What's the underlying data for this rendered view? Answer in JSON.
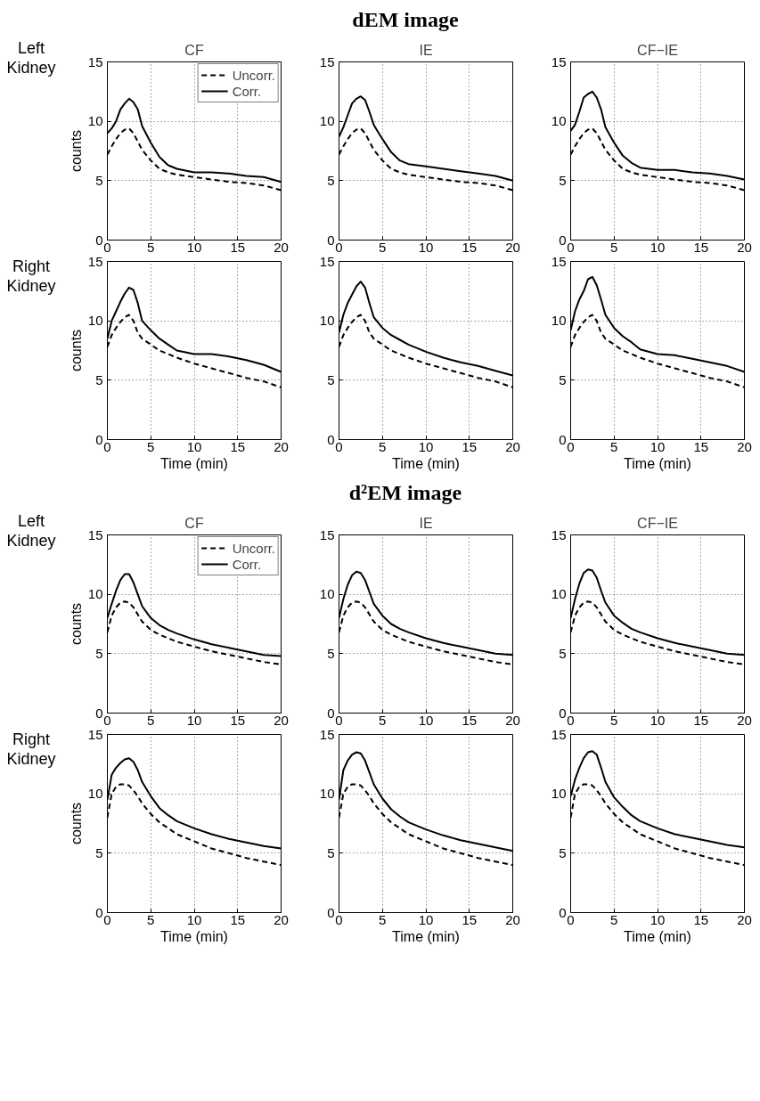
{
  "chart_data": [
    {
      "type": "line",
      "subtitle": "CF",
      "ylabel": "counts",
      "annotations": [
        "Left Kidney"
      ],
      "legend": "top right",
      "grid": true,
      "xlim": [
        0,
        20
      ],
      "ylim": [
        0,
        15
      ],
      "xticks": [
        0,
        5,
        10,
        15,
        20
      ],
      "yticks": [
        0,
        5,
        10,
        15
      ],
      "x": [
        0,
        0.5,
        1,
        1.5,
        2,
        2.5,
        3,
        3.5,
        4,
        5,
        6,
        7,
        8,
        10,
        12,
        14,
        16,
        18,
        20
      ],
      "series": [
        {
          "name": "Uncorr.",
          "color": "#000000",
          "line_style": "dashed",
          "values": [
            7.2,
            7.9,
            8.5,
            9.0,
            9.3,
            9.4,
            9.0,
            8.3,
            7.6,
            6.7,
            6.0,
            5.7,
            5.5,
            5.3,
            5.1,
            4.9,
            4.8,
            4.6,
            4.2
          ]
        },
        {
          "name": "Corr.",
          "color": "#000000",
          "line_style": "solid",
          "values": [
            9.0,
            9.4,
            10.0,
            11.0,
            11.5,
            11.9,
            11.6,
            11.0,
            9.6,
            8.2,
            7.0,
            6.3,
            6.0,
            5.7,
            5.7,
            5.6,
            5.4,
            5.3,
            4.9
          ]
        }
      ]
    },
    {
      "type": "line",
      "title": "dEM image",
      "subtitle": "IE",
      "grid": true,
      "xlim": [
        0,
        20
      ],
      "ylim": [
        0,
        15
      ],
      "xticks": [
        0,
        5,
        10,
        15,
        20
      ],
      "yticks": [
        0,
        5,
        10,
        15
      ],
      "x": [
        0,
        0.5,
        1,
        1.5,
        2,
        2.5,
        3,
        3.5,
        4,
        5,
        6,
        7,
        8,
        10,
        12,
        14,
        16,
        18,
        20
      ],
      "series": [
        {
          "color": "#000000",
          "line_style": "dashed",
          "values": [
            7.2,
            7.9,
            8.5,
            9.0,
            9.3,
            9.4,
            9.0,
            8.3,
            7.6,
            6.7,
            6.0,
            5.7,
            5.5,
            5.3,
            5.1,
            4.9,
            4.8,
            4.6,
            4.2
          ]
        },
        {
          "color": "#000000",
          "line_style": "solid",
          "values": [
            8.7,
            9.5,
            10.5,
            11.5,
            11.9,
            12.1,
            11.8,
            10.8,
            9.7,
            8.5,
            7.4,
            6.7,
            6.4,
            6.2,
            6.0,
            5.8,
            5.6,
            5.4,
            5.0
          ]
        }
      ]
    },
    {
      "type": "line",
      "subtitle": "CF−IE",
      "grid": true,
      "xlim": [
        0,
        20
      ],
      "ylim": [
        0,
        15
      ],
      "xticks": [
        0,
        5,
        10,
        15,
        20
      ],
      "yticks": [
        0,
        5,
        10,
        15
      ],
      "x": [
        0,
        0.5,
        1,
        1.5,
        2,
        2.5,
        3,
        3.5,
        4,
        5,
        6,
        7,
        8,
        10,
        12,
        14,
        16,
        18,
        20
      ],
      "series": [
        {
          "color": "#000000",
          "line_style": "dashed",
          "values": [
            7.2,
            7.9,
            8.5,
            9.0,
            9.3,
            9.4,
            9.0,
            8.3,
            7.6,
            6.7,
            6.0,
            5.7,
            5.5,
            5.3,
            5.1,
            4.9,
            4.8,
            4.6,
            4.2
          ]
        },
        {
          "color": "#000000",
          "line_style": "solid",
          "values": [
            9.2,
            9.7,
            10.8,
            12.0,
            12.3,
            12.5,
            12.0,
            11.0,
            9.5,
            8.2,
            7.1,
            6.5,
            6.1,
            5.9,
            5.9,
            5.7,
            5.6,
            5.4,
            5.1
          ]
        }
      ]
    },
    {
      "type": "line",
      "ylabel": "counts",
      "xlabel": "Time (min)",
      "annotations": [
        "Right Kidney"
      ],
      "grid": true,
      "xlim": [
        0,
        20
      ],
      "ylim": [
        0,
        15
      ],
      "xticks": [
        0,
        5,
        10,
        15,
        20
      ],
      "yticks": [
        0,
        5,
        10,
        15
      ],
      "x": [
        0,
        0.5,
        1,
        1.5,
        2,
        2.5,
        3,
        3.5,
        4,
        5,
        6,
        7,
        8,
        10,
        12,
        14,
        16,
        18,
        20
      ],
      "series": [
        {
          "color": "#000000",
          "line_style": "dashed",
          "values": [
            7.8,
            8.8,
            9.4,
            9.9,
            10.3,
            10.5,
            10.0,
            9.0,
            8.5,
            8.0,
            7.5,
            7.2,
            6.9,
            6.4,
            6.0,
            5.6,
            5.2,
            4.9,
            4.4
          ]
        },
        {
          "color": "#000000",
          "line_style": "solid",
          "values": [
            8.5,
            10.0,
            10.8,
            11.6,
            12.3,
            12.8,
            12.6,
            11.5,
            10.0,
            9.2,
            8.5,
            8.0,
            7.5,
            7.2,
            7.2,
            7.0,
            6.7,
            6.3,
            5.7
          ]
        }
      ]
    },
    {
      "type": "line",
      "xlabel": "Time (min)",
      "grid": true,
      "xlim": [
        0,
        20
      ],
      "ylim": [
        0,
        15
      ],
      "xticks": [
        0,
        5,
        10,
        15,
        20
      ],
      "yticks": [
        0,
        5,
        10,
        15
      ],
      "x": [
        0,
        0.5,
        1,
        1.5,
        2,
        2.5,
        3,
        3.5,
        4,
        5,
        6,
        7,
        8,
        10,
        12,
        14,
        16,
        18,
        20
      ],
      "series": [
        {
          "color": "#000000",
          "line_style": "dashed",
          "values": [
            7.8,
            8.8,
            9.4,
            9.9,
            10.3,
            10.5,
            10.0,
            9.0,
            8.5,
            8.0,
            7.5,
            7.2,
            6.9,
            6.4,
            6.0,
            5.6,
            5.2,
            4.9,
            4.4
          ]
        },
        {
          "color": "#000000",
          "line_style": "solid",
          "values": [
            9.0,
            10.5,
            11.5,
            12.2,
            12.9,
            13.3,
            12.8,
            11.5,
            10.3,
            9.4,
            8.8,
            8.4,
            8.0,
            7.4,
            6.9,
            6.5,
            6.2,
            5.8,
            5.4
          ]
        }
      ]
    },
    {
      "type": "line",
      "xlabel": "Time (min)",
      "grid": true,
      "xlim": [
        0,
        20
      ],
      "ylim": [
        0,
        15
      ],
      "xticks": [
        0,
        5,
        10,
        15,
        20
      ],
      "yticks": [
        0,
        5,
        10,
        15
      ],
      "x": [
        0,
        0.5,
        1,
        1.5,
        2,
        2.5,
        3,
        3.5,
        4,
        5,
        6,
        7,
        8,
        10,
        12,
        14,
        16,
        18,
        20
      ],
      "series": [
        {
          "color": "#000000",
          "line_style": "dashed",
          "values": [
            7.8,
            8.8,
            9.4,
            9.9,
            10.3,
            10.5,
            10.0,
            9.0,
            8.5,
            8.0,
            7.5,
            7.2,
            6.9,
            6.4,
            6.0,
            5.6,
            5.2,
            4.9,
            4.4
          ]
        },
        {
          "color": "#000000",
          "line_style": "solid",
          "values": [
            9.2,
            10.8,
            11.8,
            12.5,
            13.5,
            13.7,
            13.0,
            11.8,
            10.5,
            9.4,
            8.7,
            8.2,
            7.6,
            7.2,
            7.1,
            6.8,
            6.5,
            6.2,
            5.7
          ]
        }
      ]
    },
    {
      "type": "line",
      "subtitle": "CF",
      "ylabel": "counts",
      "annotations": [
        "Left Kidney"
      ],
      "legend": "top right",
      "grid": true,
      "xlim": [
        0,
        20
      ],
      "ylim": [
        0,
        15
      ],
      "xticks": [
        0,
        5,
        10,
        15,
        20
      ],
      "yticks": [
        0,
        5,
        10,
        15
      ],
      "x": [
        0,
        0.5,
        1,
        1.5,
        2,
        2.5,
        3,
        3.5,
        4,
        5,
        6,
        7,
        8,
        10,
        12,
        14,
        16,
        18,
        20
      ],
      "series": [
        {
          "name": "Uncorr.",
          "color": "#000000",
          "line_style": "dashed",
          "values": [
            6.8,
            8.2,
            8.9,
            9.3,
            9.4,
            9.3,
            8.9,
            8.3,
            7.7,
            7.0,
            6.6,
            6.3,
            6.0,
            5.6,
            5.2,
            4.9,
            4.6,
            4.3,
            4.1
          ]
        },
        {
          "name": "Corr.",
          "color": "#000000",
          "line_style": "solid",
          "values": [
            8.0,
            9.2,
            10.3,
            11.2,
            11.7,
            11.7,
            11.0,
            10.0,
            9.0,
            8.0,
            7.4,
            7.0,
            6.7,
            6.2,
            5.8,
            5.5,
            5.2,
            4.9,
            4.8
          ]
        }
      ]
    },
    {
      "type": "line",
      "title": "d²EM image",
      "subtitle": "IE",
      "grid": true,
      "xlim": [
        0,
        20
      ],
      "ylim": [
        0,
        15
      ],
      "xticks": [
        0,
        5,
        10,
        15,
        20
      ],
      "yticks": [
        0,
        5,
        10,
        15
      ],
      "x": [
        0,
        0.5,
        1,
        1.5,
        2,
        2.5,
        3,
        3.5,
        4,
        5,
        6,
        7,
        8,
        10,
        12,
        14,
        16,
        18,
        20
      ],
      "series": [
        {
          "color": "#000000",
          "line_style": "dashed",
          "values": [
            6.8,
            8.2,
            8.9,
            9.3,
            9.4,
            9.3,
            8.9,
            8.3,
            7.7,
            7.0,
            6.6,
            6.3,
            6.0,
            5.6,
            5.2,
            4.9,
            4.6,
            4.3,
            4.1
          ]
        },
        {
          "color": "#000000",
          "line_style": "solid",
          "values": [
            8.0,
            9.6,
            10.8,
            11.6,
            11.9,
            11.8,
            11.2,
            10.2,
            9.2,
            8.2,
            7.5,
            7.1,
            6.8,
            6.3,
            5.9,
            5.6,
            5.3,
            5.0,
            4.9
          ]
        }
      ]
    },
    {
      "type": "line",
      "subtitle": "CF−IE",
      "grid": true,
      "xlim": [
        0,
        20
      ],
      "ylim": [
        0,
        15
      ],
      "xticks": [
        0,
        5,
        10,
        15,
        20
      ],
      "yticks": [
        0,
        5,
        10,
        15
      ],
      "x": [
        0,
        0.5,
        1,
        1.5,
        2,
        2.5,
        3,
        3.5,
        4,
        5,
        6,
        7,
        8,
        10,
        12,
        14,
        16,
        18,
        20
      ],
      "series": [
        {
          "color": "#000000",
          "line_style": "dashed",
          "values": [
            6.8,
            8.2,
            8.9,
            9.3,
            9.4,
            9.3,
            8.9,
            8.3,
            7.7,
            7.0,
            6.6,
            6.3,
            6.0,
            5.6,
            5.2,
            4.9,
            4.6,
            4.3,
            4.1
          ]
        },
        {
          "color": "#000000",
          "line_style": "solid",
          "values": [
            8.0,
            9.6,
            10.9,
            11.8,
            12.1,
            12.0,
            11.4,
            10.3,
            9.3,
            8.2,
            7.6,
            7.1,
            6.8,
            6.3,
            5.9,
            5.6,
            5.3,
            5.0,
            4.9
          ]
        }
      ]
    },
    {
      "type": "line",
      "ylabel": "counts",
      "xlabel": "Time (min)",
      "annotations": [
        "Right Kidney"
      ],
      "grid": true,
      "xlim": [
        0,
        20
      ],
      "ylim": [
        0,
        15
      ],
      "xticks": [
        0,
        5,
        10,
        15,
        20
      ],
      "yticks": [
        0,
        5,
        10,
        15
      ],
      "x": [
        0,
        0.5,
        1,
        1.5,
        2,
        2.5,
        3,
        3.5,
        4,
        5,
        6,
        7,
        8,
        10,
        12,
        14,
        16,
        18,
        20
      ],
      "series": [
        {
          "color": "#000000",
          "line_style": "dashed",
          "values": [
            8.0,
            10.0,
            10.6,
            10.8,
            10.8,
            10.7,
            10.3,
            9.8,
            9.2,
            8.3,
            7.6,
            7.1,
            6.6,
            6.0,
            5.4,
            5.0,
            4.6,
            4.3,
            4.0
          ]
        },
        {
          "color": "#000000",
          "line_style": "solid",
          "values": [
            9.5,
            11.6,
            12.2,
            12.6,
            12.9,
            13.0,
            12.7,
            12.0,
            11.0,
            9.8,
            8.8,
            8.2,
            7.7,
            7.1,
            6.6,
            6.2,
            5.9,
            5.6,
            5.4
          ]
        }
      ]
    },
    {
      "type": "line",
      "xlabel": "Time (min)",
      "grid": true,
      "xlim": [
        0,
        20
      ],
      "ylim": [
        0,
        15
      ],
      "xticks": [
        0,
        5,
        10,
        15,
        20
      ],
      "yticks": [
        0,
        5,
        10,
        15
      ],
      "x": [
        0,
        0.5,
        1,
        1.5,
        2,
        2.5,
        3,
        3.5,
        4,
        5,
        6,
        7,
        8,
        10,
        12,
        14,
        16,
        18,
        20
      ],
      "series": [
        {
          "color": "#000000",
          "line_style": "dashed",
          "values": [
            8.0,
            10.0,
            10.6,
            10.8,
            10.8,
            10.7,
            10.3,
            9.8,
            9.2,
            8.3,
            7.6,
            7.1,
            6.6,
            6.0,
            5.4,
            5.0,
            4.6,
            4.3,
            4.0
          ]
        },
        {
          "color": "#000000",
          "line_style": "solid",
          "values": [
            9.5,
            12.0,
            12.8,
            13.3,
            13.5,
            13.4,
            12.8,
            11.8,
            10.8,
            9.6,
            8.7,
            8.1,
            7.6,
            7.0,
            6.5,
            6.1,
            5.8,
            5.5,
            5.2
          ]
        }
      ]
    },
    {
      "type": "line",
      "xlabel": "Time (min)",
      "grid": true,
      "xlim": [
        0,
        20
      ],
      "ylim": [
        0,
        15
      ],
      "xticks": [
        0,
        5,
        10,
        15,
        20
      ],
      "yticks": [
        0,
        5,
        10,
        15
      ],
      "x": [
        0,
        0.5,
        1,
        1.5,
        2,
        2.5,
        3,
        3.5,
        4,
        5,
        6,
        7,
        8,
        10,
        12,
        14,
        16,
        18,
        20
      ],
      "series": [
        {
          "color": "#000000",
          "line_style": "dashed",
          "values": [
            8.0,
            10.0,
            10.6,
            10.8,
            10.8,
            10.7,
            10.3,
            9.8,
            9.2,
            8.3,
            7.6,
            7.1,
            6.6,
            6.0,
            5.4,
            5.0,
            4.6,
            4.3,
            4.0
          ]
        },
        {
          "color": "#000000",
          "line_style": "solid",
          "values": [
            9.8,
            11.2,
            12.2,
            13.0,
            13.5,
            13.6,
            13.3,
            12.2,
            11.0,
            9.7,
            8.9,
            8.2,
            7.7,
            7.1,
            6.6,
            6.3,
            6.0,
            5.7,
            5.5
          ]
        }
      ]
    }
  ]
}
